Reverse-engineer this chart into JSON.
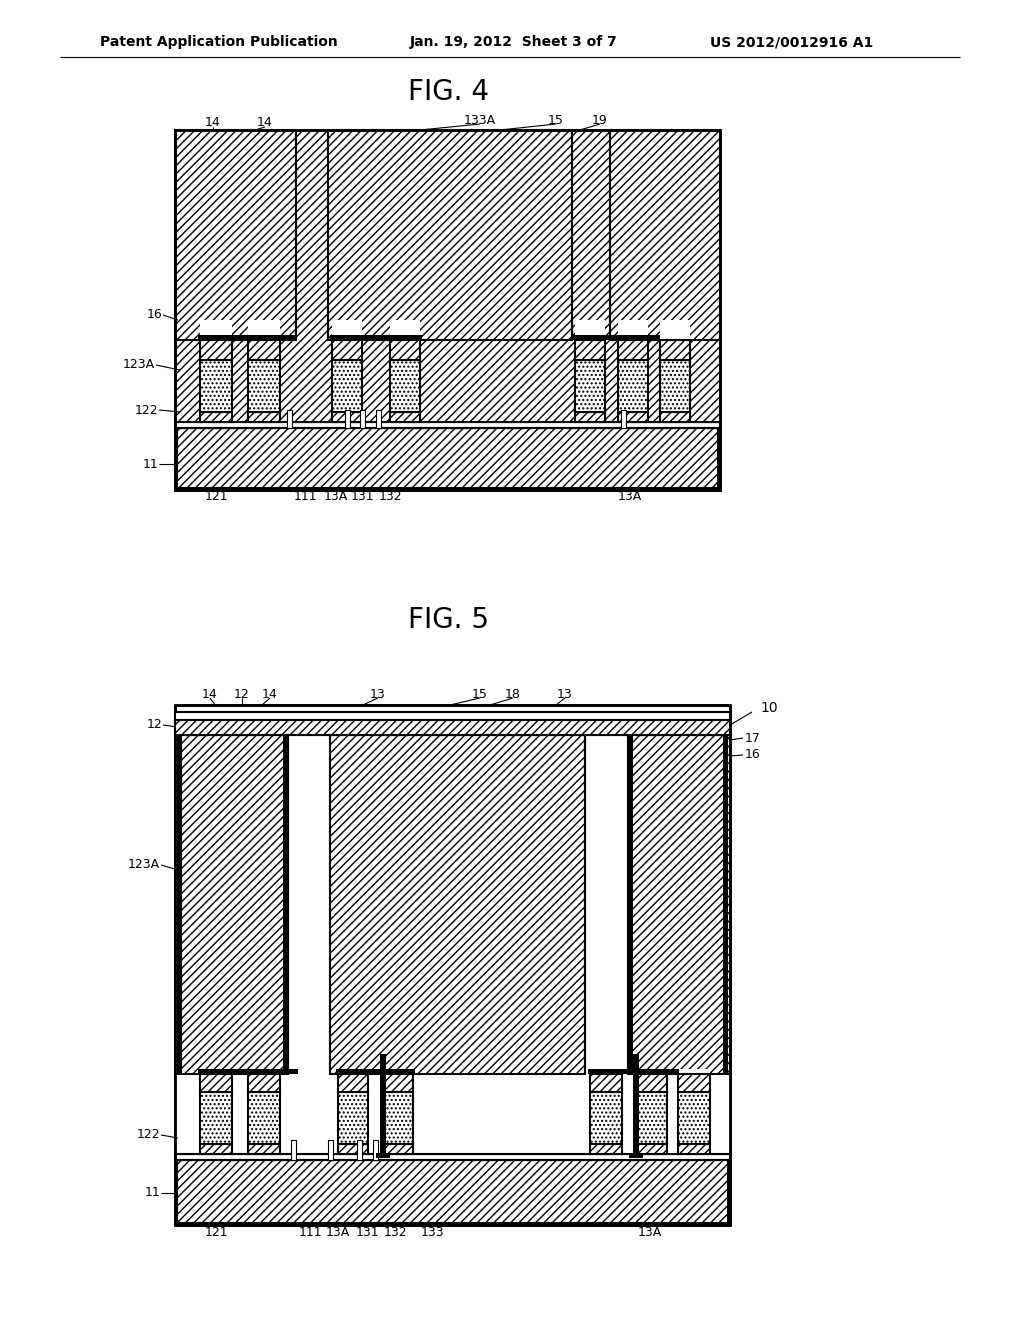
{
  "header_left": "Patent Application Publication",
  "header_center": "Jan. 19, 2012  Sheet 3 of 7",
  "header_right": "US 2012/0012916 A1",
  "fig4_title": "FIG. 4",
  "fig5_title": "FIG. 5",
  "bg_color": "#ffffff"
}
